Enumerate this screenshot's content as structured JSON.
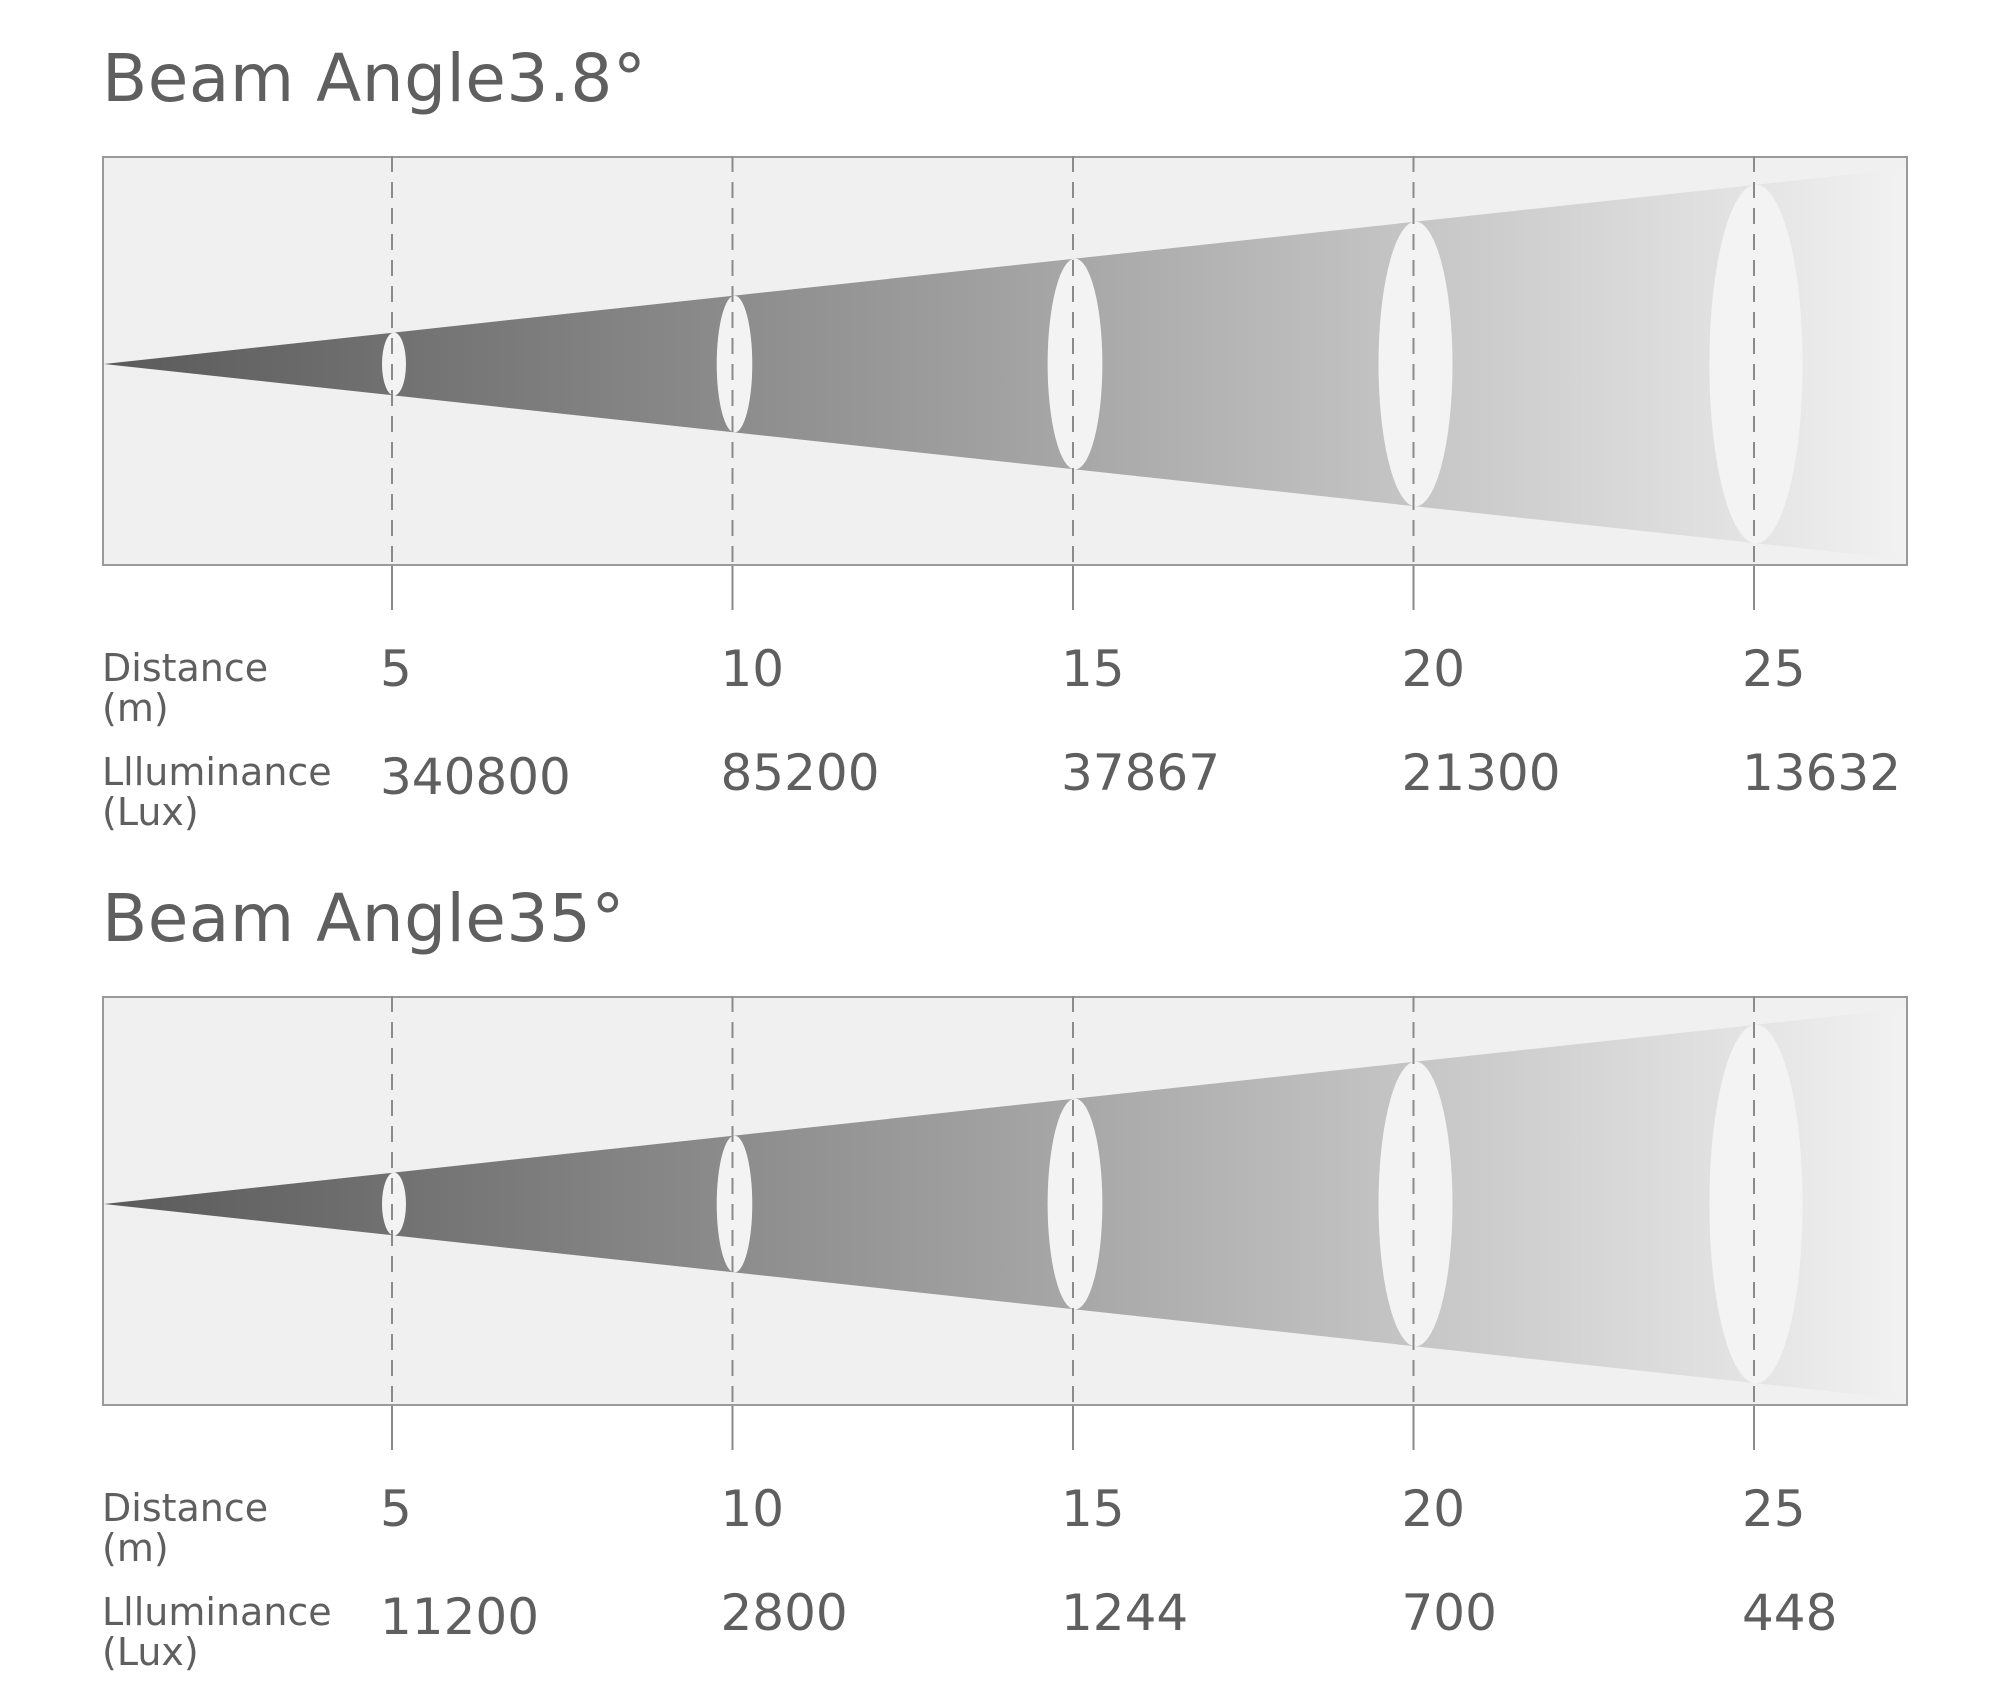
{
  "chart_data": [
    {
      "type": "diagram",
      "title": "Beam Angle3.8°",
      "distance_label": [
        "Distance",
        "(m)"
      ],
      "illuminance_label": [
        "Llluminance",
        "(Lux)"
      ],
      "distance": [
        5,
        10,
        15,
        20,
        25
      ],
      "illuminance": [
        340800,
        85200,
        37867,
        21300,
        13632
      ]
    },
    {
      "type": "diagram",
      "title": "Beam Angle35°",
      "distance_label": [
        "Distance",
        "(m)"
      ],
      "illuminance_label": [
        "Llluminance",
        "(Lux)"
      ],
      "distance": [
        5,
        10,
        15,
        20,
        25
      ],
      "illuminance": [
        11200,
        2800,
        1244,
        700,
        448
      ]
    }
  ],
  "colors": {
    "box_bg": "#f0f0f0",
    "box_border": "#9a9a9a",
    "beam_dark": "#5a5a5a",
    "beam_light": "#f2f2f2",
    "ellipse": "#f3f3f3",
    "dash": "#8a8a8a",
    "text": "#5f5f5f"
  }
}
